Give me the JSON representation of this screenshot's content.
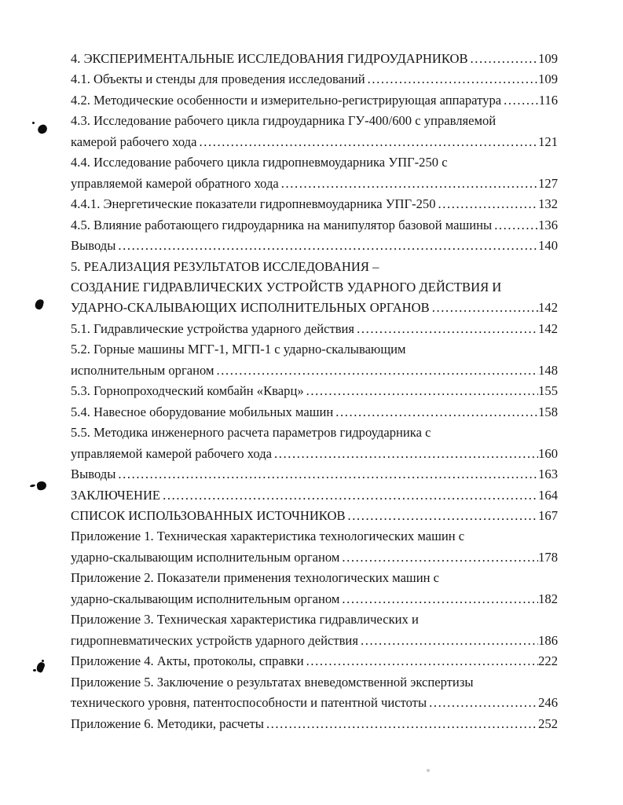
{
  "page": {
    "background_color": "#ffffff",
    "text_color": "#171717",
    "kind": "scanned table of contents page"
  },
  "toc": {
    "lines": [
      {
        "text": "4. ЭКСПЕРИМЕНТАЛЬНЫЕ ИССЛЕДОВАНИЯ ГИДРОУДАРНИКОВ",
        "page": "109"
      },
      {
        "text": "4.1. Объекты и стенды для проведения исследований",
        "page": "109"
      },
      {
        "text": "4.2. Методические особенности и измерительно-регистрирующая аппаратура",
        "page": "116"
      },
      {
        "text": "4.3. Исследование рабочего цикла гидроударника ГУ-400/600 с управляемой"
      },
      {
        "text": "камерой рабочего хода",
        "page": "121"
      },
      {
        "text": "4.4. Исследование рабочего цикла гидропневмоударника УПГ-250 с"
      },
      {
        "text": "управляемой камерой обратного хода",
        "page": "127"
      },
      {
        "text": "4.4.1. Энергетические показатели гидропневмоударника УПГ-250",
        "page": "132"
      },
      {
        "text": "4.5. Влияние работающего гидроударника на манипулятор базовой машины",
        "page": "136"
      },
      {
        "text": "Выводы",
        "page": "140"
      },
      {
        "text": "5. РЕАЛИЗАЦИЯ РЕЗУЛЬТАТОВ ИССЛЕДОВАНИЯ –"
      },
      {
        "text": "СОЗДАНИЕ ГИДРАВЛИЧЕСКИХ УСТРОЙСТВ УДАРНОГО ДЕЙСТВИЯ И"
      },
      {
        "text": "УДАРНО-СКАЛЫВАЮЩИХ ИСПОЛНИТЕЛЬНЫХ ОРГАНОВ",
        "page": "142"
      },
      {
        "text": "5.1. Гидравлические устройства ударного действия",
        "page": "142"
      },
      {
        "text": "5.2. Горные машины МГГ-1, МГП-1 с ударно-скалывающим"
      },
      {
        "text": "исполнительным органом",
        "page": "148"
      },
      {
        "text": "5.3. Горнопроходческий комбайн «Кварц»",
        "page": "155"
      },
      {
        "text": "5.4. Навесное оборудование мобильных машин",
        "page": "158"
      },
      {
        "text": "5.5. Методика инженерного расчета параметров гидроударника с"
      },
      {
        "text": "управляемой камерой рабочего хода",
        "page": "160"
      },
      {
        "text": "Выводы",
        "page": "163"
      },
      {
        "text": "ЗАКЛЮЧЕНИЕ",
        "page": "164"
      },
      {
        "text": "СПИСОК ИСПОЛЬЗОВАННЫХ ИСТОЧНИКОВ",
        "page": "167"
      },
      {
        "text": "Приложение 1. Техническая характеристика технологических машин с"
      },
      {
        "text": "ударно-скалывающим исполнительным органом",
        "page": "178"
      },
      {
        "text": "Приложение 2. Показатели применения технологических машин с"
      },
      {
        "text": "ударно-скалывающим исполнительным органом",
        "page": "182"
      },
      {
        "text": "Приложение 3. Техническая характеристика гидравлических и"
      },
      {
        "text": "гидропневматических устройств ударного действия",
        "page": "186"
      },
      {
        "text": "Приложение 4. Акты, протоколы, справки",
        "page": "222"
      },
      {
        "text": "Приложение 5. Заключение о результатах вневедомственной экспертизы"
      },
      {
        "text": "технического уровня, патентоспособности и патентной чистоты",
        "page": "246"
      },
      {
        "text": "Приложение 6. Методики, расчеты",
        "page": "252"
      }
    ]
  },
  "artifacts": {
    "ink_blot_count": 4,
    "ink_blot_color": "#0d0d0d"
  }
}
